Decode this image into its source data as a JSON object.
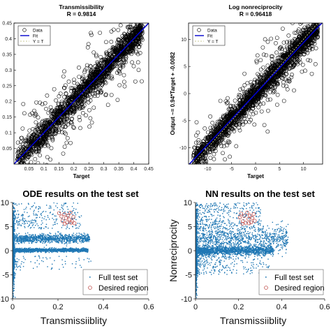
{
  "chart_data": [
    {
      "type": "scatter",
      "title": "Transmissibility",
      "subtitle": "R = 0.9814",
      "xlabel": "Target",
      "ylabel": "",
      "xlim": [
        0,
        0.45
      ],
      "ylim": [
        0,
        0.45
      ],
      "xticks": [
        "0.05",
        "0.1",
        "0.15",
        "0.2",
        "0.25",
        "0.3",
        "0.35",
        "0.4",
        "0.45"
      ],
      "yticks": [
        "0.05",
        "0.1",
        "0.15",
        "0.2",
        "0.25",
        "0.3",
        "0.35",
        "0.4",
        "0.45"
      ],
      "legend": {
        "position": "top-left",
        "entries": [
          "Data",
          "Fit",
          "Y = T"
        ]
      },
      "fit": {
        "slope": 1.0,
        "intercept": 0.0
      },
      "scatter_model": {
        "x_min": 0.01,
        "x_max": 0.43,
        "noise_sd": 0.02,
        "outlier_sd": 0.07,
        "n_points": 1800
      },
      "colors": {
        "data": "#000000",
        "fit": "#0000cc",
        "ident": "#c8c896"
      }
    },
    {
      "type": "scatter",
      "title": "Log nonreciprocity",
      "subtitle": "R = 0.96418",
      "xlabel": "Target",
      "ylabel": "Output ~= 0.94*Target + -0.0082",
      "xlim": [
        -14,
        14
      ],
      "ylim": [
        -13,
        13
      ],
      "xticks": [
        "-10",
        "-5",
        "0",
        "5",
        "10"
      ],
      "yticks": [
        "-10",
        "-5",
        "0",
        "5",
        "10"
      ],
      "legend": {
        "position": "top-left",
        "entries": [
          "Data",
          "Fit",
          "Y = T"
        ]
      },
      "fit": {
        "slope": 0.94,
        "intercept": -0.0082
      },
      "scatter_model": {
        "x_min": -13,
        "x_max": 13,
        "noise_sd": 1.0,
        "outlier_sd": 3.0,
        "n_points": 2200
      },
      "colors": {
        "data": "#000000",
        "fit": "#0000cc",
        "ident": "#c8c896"
      }
    },
    {
      "type": "scatter",
      "title": "ODE results on the test set",
      "xlabel": "Transmissiiblity",
      "ylabel": "",
      "xlim": [
        0,
        0.6
      ],
      "ylim": [
        -10,
        10
      ],
      "xticks": [
        "0",
        "0.2",
        "0.4",
        "0.6"
      ],
      "yticks": [
        "-10",
        "-5",
        "0",
        "5",
        "10"
      ],
      "legend": {
        "position": "bottom-right",
        "entries": [
          "Full test set",
          "Desired region"
        ]
      },
      "desired_region": {
        "x": [
          0.2,
          0.28
        ],
        "y": [
          5.5,
          8.0
        ],
        "points": [
          [
            0.205,
            7.8
          ],
          [
            0.215,
            7.1
          ],
          [
            0.22,
            6.2
          ],
          [
            0.228,
            7.6
          ],
          [
            0.235,
            6.8
          ],
          [
            0.24,
            5.9
          ],
          [
            0.245,
            7.3
          ],
          [
            0.25,
            6.5
          ],
          [
            0.255,
            7.9
          ],
          [
            0.262,
            6.1
          ],
          [
            0.268,
            7.0
          ],
          [
            0.273,
            5.7
          ],
          [
            0.23,
            5.6
          ],
          [
            0.258,
            5.8
          ]
        ]
      },
      "colors": {
        "full": "#1f77b4",
        "desired": "#c0504d"
      }
    },
    {
      "type": "scatter",
      "title": "NN results on the test set",
      "xlabel": "Transmissiiblity",
      "ylabel": "Nonreciprocity",
      "xlim": [
        0,
        0.6
      ],
      "ylim": [
        -10,
        10
      ],
      "xticks": [
        "0",
        "0.2",
        "0.4",
        "0.6"
      ],
      "yticks": [
        "-10",
        "-5",
        "0",
        "5",
        "10"
      ],
      "legend": {
        "position": "bottom-right",
        "entries": [
          "Full test set",
          "Desired region"
        ]
      },
      "desired_region": {
        "x": [
          0.2,
          0.28
        ],
        "y": [
          5.5,
          8.0
        ],
        "points": [
          [
            0.206,
            6.9
          ],
          [
            0.212,
            7.7
          ],
          [
            0.22,
            6.1
          ],
          [
            0.226,
            7.2
          ],
          [
            0.233,
            5.8
          ],
          [
            0.24,
            7.9
          ],
          [
            0.246,
            6.6
          ],
          [
            0.252,
            7.3
          ],
          [
            0.258,
            5.9
          ],
          [
            0.264,
            6.8
          ],
          [
            0.27,
            7.6
          ],
          [
            0.275,
            6.2
          ],
          [
            0.218,
            5.6
          ],
          [
            0.248,
            5.7
          ]
        ]
      },
      "colors": {
        "full": "#1f77b4",
        "desired": "#c0504d"
      }
    }
  ]
}
